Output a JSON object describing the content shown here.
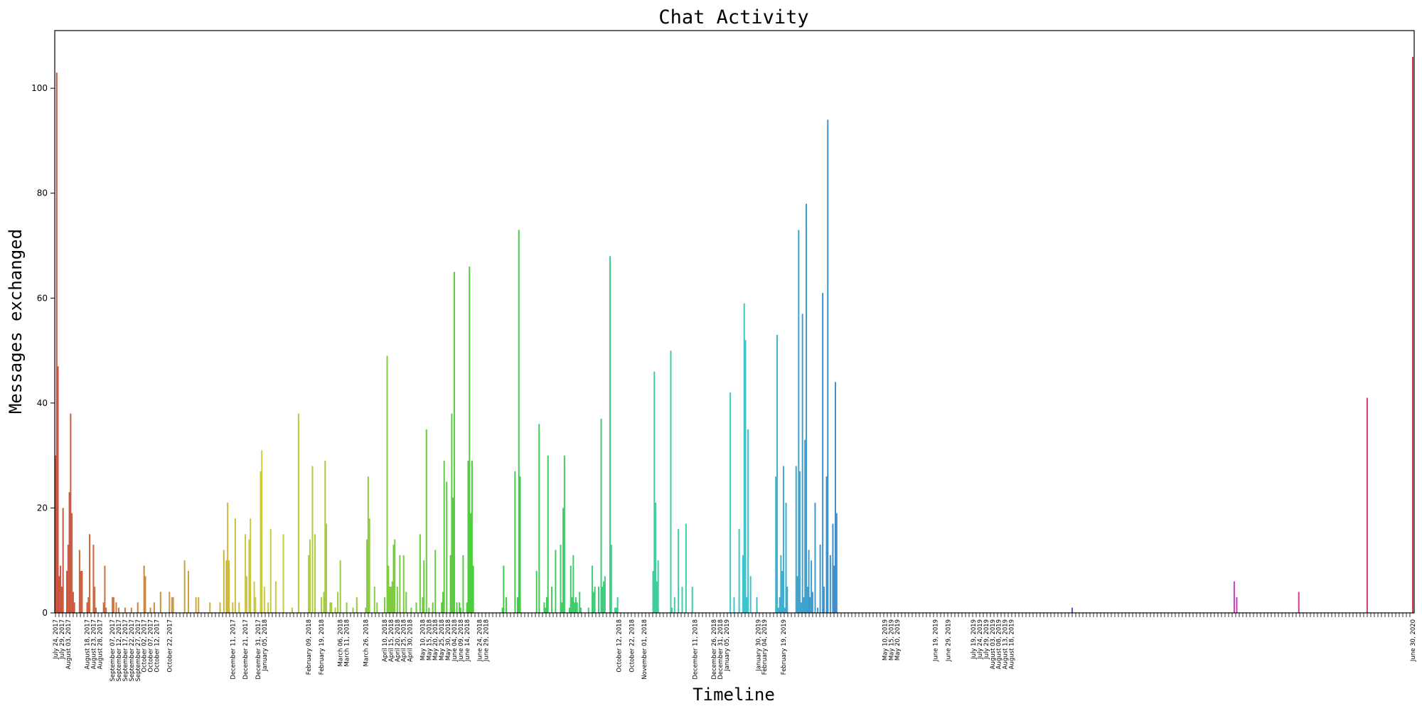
{
  "chart_data": {
    "type": "bar",
    "title": "Chat Activity",
    "xlabel": "Timeline",
    "ylabel": "Messages exchanged",
    "ylim": [
      0,
      111
    ],
    "yticks": [
      0,
      20,
      40,
      60,
      80,
      100
    ],
    "grid": false,
    "legend": "none",
    "x_range": [
      "July 24, 2017",
      "June 30, 2020"
    ],
    "x_tick_labels": [
      "July 24, 2017",
      "July 29, 2017",
      "August 03, 2017",
      "August 18, 2017",
      "August 23, 2017",
      "August 28, 2017",
      "September 07, 2017",
      "September 12, 2017",
      "September 17, 2017",
      "September 22, 2017",
      "September 27, 2017",
      "October 02, 2017",
      "October 07, 2017",
      "October 12, 2017",
      "October 22, 2017",
      "December 11, 2017",
      "December 21, 2017",
      "December 31, 2017",
      "January 05, 2018",
      "February 09, 2018",
      "February 19, 2018",
      "March 06, 2018",
      "March 11, 2018",
      "March 26, 2018",
      "April 10, 2018",
      "April 15, 2018",
      "April 20, 2018",
      "April 25, 2018",
      "April 30, 2018",
      "May 10, 2018",
      "May 15, 2018",
      "May 20, 2018",
      "May 25, 2018",
      "May 30, 2018",
      "June 04, 2018",
      "June 09, 2018",
      "June 14, 2018",
      "June 24, 2018",
      "June 29, 2018",
      "October 12, 2018",
      "October 22, 2018",
      "November 01, 2018",
      "December 11, 2018",
      "December 26, 2018",
      "December 31, 2018",
      "January 05, 2019",
      "January 30, 2019",
      "February 04, 2019",
      "February 19, 2019",
      "May 10, 2019",
      "May 15, 2019",
      "May 20, 2019",
      "June 19, 2019",
      "June 29, 2019",
      "July 19, 2019",
      "July 24, 2019",
      "July 29, 2019",
      "August 03, 2019",
      "August 08, 2019",
      "August 13, 2019",
      "August 18, 2019",
      "June 30, 2020"
    ],
    "bars": [
      {
        "date": "July 24, 2017",
        "value": 30
      },
      {
        "date": "July 25, 2017",
        "value": 103
      },
      {
        "date": "July 26, 2017",
        "value": 47
      },
      {
        "date": "July 27, 2017",
        "value": 7
      },
      {
        "date": "July 28, 2017",
        "value": 9
      },
      {
        "date": "July 29, 2017",
        "value": 5
      },
      {
        "date": "July 30, 2017",
        "value": 20
      },
      {
        "date": "August 02, 2017",
        "value": 8
      },
      {
        "date": "August 03, 2017",
        "value": 13
      },
      {
        "date": "August 04, 2017",
        "value": 23
      },
      {
        "date": "August 05, 2017",
        "value": 38
      },
      {
        "date": "August 06, 2017",
        "value": 19
      },
      {
        "date": "August 07, 2017",
        "value": 4
      },
      {
        "date": "August 08, 2017",
        "value": 2
      },
      {
        "date": "August 12, 2017",
        "value": 12
      },
      {
        "date": "August 13, 2017",
        "value": 8
      },
      {
        "date": "August 14, 2017",
        "value": 8
      },
      {
        "date": "August 18, 2017",
        "value": 2
      },
      {
        "date": "August 19, 2017",
        "value": 3
      },
      {
        "date": "August 20, 2017",
        "value": 15
      },
      {
        "date": "August 23, 2017",
        "value": 13
      },
      {
        "date": "August 24, 2017",
        "value": 5
      },
      {
        "date": "August 25, 2017",
        "value": 1
      },
      {
        "date": "August 31, 2017",
        "value": 2
      },
      {
        "date": "September 01, 2017",
        "value": 9
      },
      {
        "date": "September 02, 2017",
        "value": 1
      },
      {
        "date": "September 07, 2017",
        "value": 3
      },
      {
        "date": "September 08, 2017",
        "value": 3
      },
      {
        "date": "September 10, 2017",
        "value": 2
      },
      {
        "date": "September 12, 2017",
        "value": 1
      },
      {
        "date": "September 17, 2017",
        "value": 1
      },
      {
        "date": "September 22, 2017",
        "value": 1
      },
      {
        "date": "September 27, 2017",
        "value": 2
      },
      {
        "date": "October 02, 2017",
        "value": 9
      },
      {
        "date": "October 03, 2017",
        "value": 7
      },
      {
        "date": "October 07, 2017",
        "value": 1
      },
      {
        "date": "October 10, 2017",
        "value": 2
      },
      {
        "date": "October 15, 2017",
        "value": 4
      },
      {
        "date": "October 22, 2017",
        "value": 4
      },
      {
        "date": "October 24, 2017",
        "value": 3
      },
      {
        "date": "October 25, 2017",
        "value": 3
      },
      {
        "date": "November 03, 2017",
        "value": 10
      },
      {
        "date": "November 06, 2017",
        "value": 8
      },
      {
        "date": "November 12, 2017",
        "value": 3
      },
      {
        "date": "November 14, 2017",
        "value": 3
      },
      {
        "date": "November 23, 2017",
        "value": 2
      },
      {
        "date": "December 01, 2017",
        "value": 2
      },
      {
        "date": "December 04, 2017",
        "value": 12
      },
      {
        "date": "December 06, 2017",
        "value": 10
      },
      {
        "date": "December 07, 2017",
        "value": 21
      },
      {
        "date": "December 08, 2017",
        "value": 10
      },
      {
        "date": "December 11, 2017",
        "value": 2
      },
      {
        "date": "December 13, 2017",
        "value": 18
      },
      {
        "date": "December 16, 2017",
        "value": 2
      },
      {
        "date": "December 21, 2017",
        "value": 15
      },
      {
        "date": "December 22, 2017",
        "value": 7
      },
      {
        "date": "December 24, 2017",
        "value": 14
      },
      {
        "date": "December 25, 2017",
        "value": 18
      },
      {
        "date": "December 28, 2017",
        "value": 6
      },
      {
        "date": "December 29, 2017",
        "value": 3
      },
      {
        "date": "January 02, 2018",
        "value": 27
      },
      {
        "date": "January 03, 2018",
        "value": 31
      },
      {
        "date": "January 05, 2018",
        "value": 5
      },
      {
        "date": "January 08, 2018",
        "value": 2
      },
      {
        "date": "January 10, 2018",
        "value": 16
      },
      {
        "date": "January 14, 2018",
        "value": 6
      },
      {
        "date": "January 20, 2018",
        "value": 15
      },
      {
        "date": "January 27, 2018",
        "value": 1
      },
      {
        "date": "February 01, 2018",
        "value": 38
      },
      {
        "date": "February 09, 2018",
        "value": 11
      },
      {
        "date": "February 10, 2018",
        "value": 14
      },
      {
        "date": "February 12, 2018",
        "value": 28
      },
      {
        "date": "February 14, 2018",
        "value": 15
      },
      {
        "date": "February 19, 2018",
        "value": 3
      },
      {
        "date": "February 21, 2018",
        "value": 4
      },
      {
        "date": "February 22, 2018",
        "value": 29
      },
      {
        "date": "February 23, 2018",
        "value": 17
      },
      {
        "date": "February 26, 2018",
        "value": 2
      },
      {
        "date": "February 27, 2018",
        "value": 2
      },
      {
        "date": "March 02, 2018",
        "value": 1
      },
      {
        "date": "March 04, 2018",
        "value": 4
      },
      {
        "date": "March 06, 2018",
        "value": 10
      },
      {
        "date": "March 11, 2018",
        "value": 2
      },
      {
        "date": "March 16, 2018",
        "value": 1
      },
      {
        "date": "March 19, 2018",
        "value": 3
      },
      {
        "date": "March 26, 2018",
        "value": 1
      },
      {
        "date": "March 27, 2018",
        "value": 14
      },
      {
        "date": "March 28, 2018",
        "value": 26
      },
      {
        "date": "March 29, 2018",
        "value": 18
      },
      {
        "date": "April 02, 2018",
        "value": 5
      },
      {
        "date": "April 04, 2018",
        "value": 2
      },
      {
        "date": "April 10, 2018",
        "value": 3
      },
      {
        "date": "April 12, 2018",
        "value": 49
      },
      {
        "date": "April 13, 2018",
        "value": 9
      },
      {
        "date": "April 14, 2018",
        "value": 5
      },
      {
        "date": "April 15, 2018",
        "value": 5
      },
      {
        "date": "April 16, 2018",
        "value": 6
      },
      {
        "date": "April 17, 2018",
        "value": 13
      },
      {
        "date": "April 18, 2018",
        "value": 14
      },
      {
        "date": "April 20, 2018",
        "value": 5
      },
      {
        "date": "April 22, 2018",
        "value": 11
      },
      {
        "date": "April 25, 2018",
        "value": 11
      },
      {
        "date": "April 27, 2018",
        "value": 4
      },
      {
        "date": "May 01, 2018",
        "value": 1
      },
      {
        "date": "May 05, 2018",
        "value": 2
      },
      {
        "date": "May 08, 2018",
        "value": 15
      },
      {
        "date": "May 10, 2018",
        "value": 3
      },
      {
        "date": "May 11, 2018",
        "value": 10
      },
      {
        "date": "May 13, 2018",
        "value": 35
      },
      {
        "date": "May 15, 2018",
        "value": 1
      },
      {
        "date": "May 18, 2018",
        "value": 2
      },
      {
        "date": "May 20, 2018",
        "value": 12
      },
      {
        "date": "May 25, 2018",
        "value": 2
      },
      {
        "date": "May 26, 2018",
        "value": 4
      },
      {
        "date": "May 27, 2018",
        "value": 29
      },
      {
        "date": "May 29, 2018",
        "value": 25
      },
      {
        "date": "June 01, 2018",
        "value": 11
      },
      {
        "date": "June 02, 2018",
        "value": 38
      },
      {
        "date": "June 03, 2018",
        "value": 22
      },
      {
        "date": "June 04, 2018",
        "value": 65
      },
      {
        "date": "June 06, 2018",
        "value": 2
      },
      {
        "date": "June 08, 2018",
        "value": 2
      },
      {
        "date": "June 09, 2018",
        "value": 1
      },
      {
        "date": "June 11, 2018",
        "value": 11
      },
      {
        "date": "June 14, 2018",
        "value": 2
      },
      {
        "date": "June 15, 2018",
        "value": 29
      },
      {
        "date": "June 16, 2018",
        "value": 66
      },
      {
        "date": "June 17, 2018",
        "value": 19
      },
      {
        "date": "June 18, 2018",
        "value": 29
      },
      {
        "date": "June 19, 2018",
        "value": 9
      },
      {
        "date": "July 12, 2018",
        "value": 1
      },
      {
        "date": "July 13, 2018",
        "value": 9
      },
      {
        "date": "July 15, 2018",
        "value": 3
      },
      {
        "date": "July 22, 2018",
        "value": 27
      },
      {
        "date": "July 24, 2018",
        "value": 3
      },
      {
        "date": "July 25, 2018",
        "value": 73
      },
      {
        "date": "July 26, 2018",
        "value": 26
      },
      {
        "date": "August 08, 2018",
        "value": 8
      },
      {
        "date": "August 10, 2018",
        "value": 36
      },
      {
        "date": "August 14, 2018",
        "value": 2
      },
      {
        "date": "August 15, 2018",
        "value": 1
      },
      {
        "date": "August 16, 2018",
        "value": 3
      },
      {
        "date": "August 17, 2018",
        "value": 30
      },
      {
        "date": "August 20, 2018",
        "value": 5
      },
      {
        "date": "August 23, 2018",
        "value": 12
      },
      {
        "date": "August 27, 2018",
        "value": 13
      },
      {
        "date": "August 28, 2018",
        "value": 2
      },
      {
        "date": "August 29, 2018",
        "value": 20
      },
      {
        "date": "August 30, 2018",
        "value": 30
      },
      {
        "date": "September 03, 2018",
        "value": 1
      },
      {
        "date": "September 04, 2018",
        "value": 9
      },
      {
        "date": "September 05, 2018",
        "value": 3
      },
      {
        "date": "September 06, 2018",
        "value": 11
      },
      {
        "date": "September 07, 2018",
        "value": 2
      },
      {
        "date": "September 08, 2018",
        "value": 3
      },
      {
        "date": "September 09, 2018",
        "value": 2
      },
      {
        "date": "September 11, 2018",
        "value": 4
      },
      {
        "date": "September 12, 2018",
        "value": 1
      },
      {
        "date": "September 18, 2018",
        "value": 1
      },
      {
        "date": "September 21, 2018",
        "value": 9
      },
      {
        "date": "September 22, 2018",
        "value": 4
      },
      {
        "date": "September 23, 2018",
        "value": 5
      },
      {
        "date": "September 26, 2018",
        "value": 5
      },
      {
        "date": "September 28, 2018",
        "value": 37
      },
      {
        "date": "September 29, 2018",
        "value": 5
      },
      {
        "date": "September 30, 2018",
        "value": 6
      },
      {
        "date": "October 01, 2018",
        "value": 7
      },
      {
        "date": "October 05, 2018",
        "value": 68
      },
      {
        "date": "October 06, 2018",
        "value": 13
      },
      {
        "date": "October 09, 2018",
        "value": 1
      },
      {
        "date": "October 10, 2018",
        "value": 1
      },
      {
        "date": "October 11, 2018",
        "value": 3
      },
      {
        "date": "November 08, 2018",
        "value": 8
      },
      {
        "date": "November 09, 2018",
        "value": 46
      },
      {
        "date": "November 10, 2018",
        "value": 21
      },
      {
        "date": "November 11, 2018",
        "value": 6
      },
      {
        "date": "November 12, 2018",
        "value": 10
      },
      {
        "date": "November 22, 2018",
        "value": 50
      },
      {
        "date": "November 23, 2018",
        "value": 1
      },
      {
        "date": "November 25, 2018",
        "value": 3
      },
      {
        "date": "November 28, 2018",
        "value": 16
      },
      {
        "date": "December 01, 2018",
        "value": 5
      },
      {
        "date": "December 04, 2018",
        "value": 17
      },
      {
        "date": "December 09, 2018",
        "value": 5
      },
      {
        "date": "January 08, 2019",
        "value": 42
      },
      {
        "date": "January 11, 2019",
        "value": 3
      },
      {
        "date": "January 15, 2019",
        "value": 16
      },
      {
        "date": "January 18, 2019",
        "value": 11
      },
      {
        "date": "January 19, 2019",
        "value": 59
      },
      {
        "date": "January 20, 2019",
        "value": 52
      },
      {
        "date": "January 21, 2019",
        "value": 3
      },
      {
        "date": "January 22, 2019",
        "value": 35
      },
      {
        "date": "January 24, 2019",
        "value": 7
      },
      {
        "date": "January 29, 2019",
        "value": 3
      },
      {
        "date": "February 13, 2019",
        "value": 26
      },
      {
        "date": "February 14, 2019",
        "value": 53
      },
      {
        "date": "February 15, 2019",
        "value": 1
      },
      {
        "date": "February 16, 2019",
        "value": 3
      },
      {
        "date": "February 17, 2019",
        "value": 11
      },
      {
        "date": "February 18, 2019",
        "value": 8
      },
      {
        "date": "February 19, 2019",
        "value": 28
      },
      {
        "date": "February 20, 2019",
        "value": 1
      },
      {
        "date": "February 21, 2019",
        "value": 21
      },
      {
        "date": "February 22, 2019",
        "value": 5
      },
      {
        "date": "March 01, 2019",
        "value": 28
      },
      {
        "date": "March 02, 2019",
        "value": 7
      },
      {
        "date": "March 03, 2019",
        "value": 73
      },
      {
        "date": "March 04, 2019",
        "value": 27
      },
      {
        "date": "March 05, 2019",
        "value": 2
      },
      {
        "date": "March 06, 2019",
        "value": 57
      },
      {
        "date": "March 07, 2019",
        "value": 3
      },
      {
        "date": "March 08, 2019",
        "value": 33
      },
      {
        "date": "March 09, 2019",
        "value": 78
      },
      {
        "date": "March 10, 2019",
        "value": 5
      },
      {
        "date": "March 11, 2019",
        "value": 12
      },
      {
        "date": "March 12, 2019",
        "value": 3
      },
      {
        "date": "March 13, 2019",
        "value": 10
      },
      {
        "date": "March 14, 2019",
        "value": 4
      },
      {
        "date": "March 16, 2019",
        "value": 21
      },
      {
        "date": "March 18, 2019",
        "value": 1
      },
      {
        "date": "March 20, 2019",
        "value": 13
      },
      {
        "date": "March 22, 2019",
        "value": 61
      },
      {
        "date": "March 23, 2019",
        "value": 5
      },
      {
        "date": "March 25, 2019",
        "value": 26
      },
      {
        "date": "March 26, 2019",
        "value": 94
      },
      {
        "date": "March 28, 2019",
        "value": 11
      },
      {
        "date": "March 30, 2019",
        "value": 17
      },
      {
        "date": "March 31, 2019",
        "value": 9
      },
      {
        "date": "April 01, 2019",
        "value": 44
      },
      {
        "date": "April 02, 2019",
        "value": 19
      },
      {
        "date": "October 05, 2019",
        "value": 1
      },
      {
        "date": "February 10, 2020",
        "value": 6
      },
      {
        "date": "February 12, 2020",
        "value": 3
      },
      {
        "date": "April 01, 2020",
        "value": 4
      },
      {
        "date": "May 25, 2020",
        "value": 41
      },
      {
        "date": "June 30, 2020",
        "value": 106
      }
    ]
  }
}
